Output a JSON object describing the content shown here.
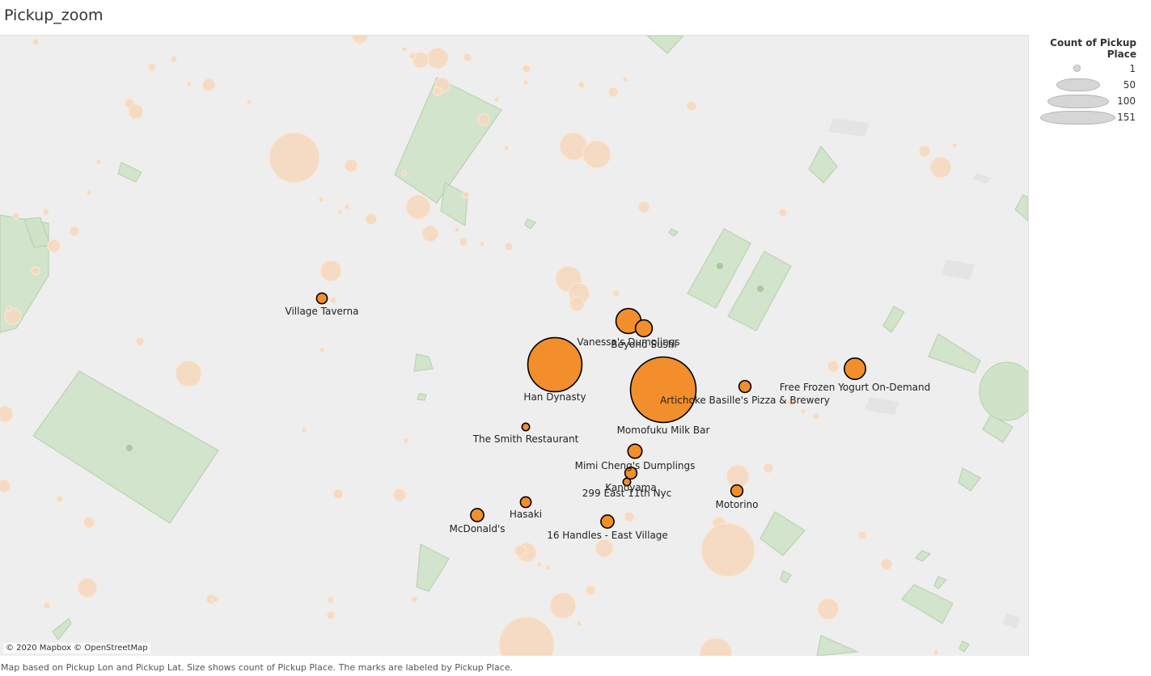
{
  "sheet": {
    "title": "Pickup_zoom"
  },
  "attribution": "© 2020 Mapbox © OpenStreetMap",
  "caption": "Map based on Pickup Lon and Pickup Lat.  Size shows count of Pickup Place.  The marks are labeled by Pickup Place.",
  "legend": {
    "title": "Count of Pickup Place",
    "items": [
      {
        "label": "1",
        "value": 1
      },
      {
        "label": "50",
        "value": 50
      },
      {
        "label": "100",
        "value": 100
      },
      {
        "label": "151",
        "value": 151
      }
    ]
  },
  "colors": {
    "mark_fill": "#f28e2b",
    "mark_stroke": "#000000",
    "background_mark": "#f6d9bf",
    "park": "#cfe3c8",
    "park_stroke": "#b5d1ab",
    "map_bg": "#eeeeee",
    "legend_shape": "#d6d6d6"
  },
  "places": [
    {
      "name": "Village Taverna",
      "count": 4
    },
    {
      "name": "Vanessa's Dumplings",
      "count": 22
    },
    {
      "name": "Beyond Sushi",
      "count": 10
    },
    {
      "name": "Han Dynasty",
      "count": 103
    },
    {
      "name": "Momofuku Milk Bar",
      "count": 151
    },
    {
      "name": "Artichoke Basille's Pizza & Brewery",
      "count": 5
    },
    {
      "name": "Free Frozen Yogurt On-Demand",
      "count": 16
    },
    {
      "name": "The Smith Restaurant",
      "count": 2
    },
    {
      "name": "Mimi Cheng's Dumplings",
      "count": 7
    },
    {
      "name": "Kanoyama",
      "count": 5
    },
    {
      "name": "299 East 11th Nyc",
      "count": 2
    },
    {
      "name": "Motorino",
      "count": 5
    },
    {
      "name": "Hasaki",
      "count": 4
    },
    {
      "name": "McDonald's",
      "count": 6
    },
    {
      "name": "16 Handles - East Village",
      "count": 6
    }
  ]
}
